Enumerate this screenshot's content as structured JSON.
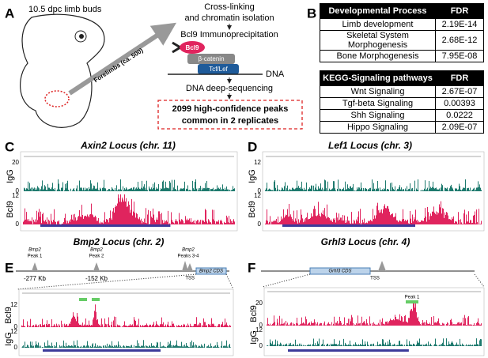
{
  "panel_labels": [
    "A",
    "B",
    "C",
    "D",
    "E",
    "F"
  ],
  "panel_a": {
    "sample": "10.5 dpc limb buds",
    "arrow": "Forelimbs (ca. 500)",
    "step1": "Cross-linking",
    "step1b": "and chromatin isolation",
    "step2": "Bcl9 Immunoprecipitation",
    "proteins": [
      "Bcl9",
      "β-catenin",
      "Tcf/Lef"
    ],
    "dna": "DNA",
    "step3": "DNA deep-sequencing",
    "result": [
      "2099 high-confidence peaks",
      "common in 2 replicates"
    ]
  },
  "table1": {
    "header": [
      "Developmental Process",
      "FDR"
    ],
    "rows": [
      [
        "Limb development",
        "2.19E-14"
      ],
      [
        "Skeletal System Morphogenesis",
        "2.68E-12"
      ],
      [
        "Bone Morphogenesis",
        "7.95E-08"
      ]
    ]
  },
  "table2": {
    "header": [
      "KEGG-Signaling pathways",
      "FDR"
    ],
    "rows": [
      [
        "Wnt Signaling",
        "2.67E-07"
      ],
      [
        "Tgf-beta Signaling",
        "0.00393"
      ],
      [
        "Shh Signaling",
        "0.0222"
      ],
      [
        "Hippo Signaling",
        "2.09E-07"
      ]
    ]
  },
  "panel_c": {
    "title": "Axin2 Locus (chr. 11)",
    "tracks": [
      "IgG",
      "Bcl9"
    ],
    "scales": [
      [
        "20",
        "0"
      ],
      [
        "12",
        "0"
      ]
    ]
  },
  "panel_d": {
    "title": "Lef1 Locus (chr. 3)",
    "tracks": [
      "IgG",
      "Bcl9"
    ],
    "scales": [
      [
        "12",
        "0"
      ],
      [
        "12",
        "0"
      ]
    ]
  },
  "panel_e": {
    "title": "Bmp2 Locus (chr. 2)",
    "peaks": [
      "Bmp2",
      "Peak 1",
      "Bmp2",
      "Peak 2",
      "Bmp2",
      "Peaks 3-4"
    ],
    "distances": [
      "-277 Kb",
      "-152 Kb"
    ],
    "tss": "TSS",
    "cds": "Bmp2 CDS",
    "tracks": [
      "Bcl9",
      "IgG"
    ],
    "scales": [
      [
        "12",
        "0"
      ],
      [
        "12",
        "0"
      ]
    ]
  },
  "panel_f": {
    "title": "Grhl3 Locus (chr. 4)",
    "tss": "TSS",
    "cds": "Grhl3 CDS",
    "peak": "Peak 1",
    "tracks": [
      "Bcl9",
      "IgG"
    ],
    "scales": [
      [
        "20",
        "0"
      ],
      [
        "12",
        "0"
      ]
    ]
  }
}
